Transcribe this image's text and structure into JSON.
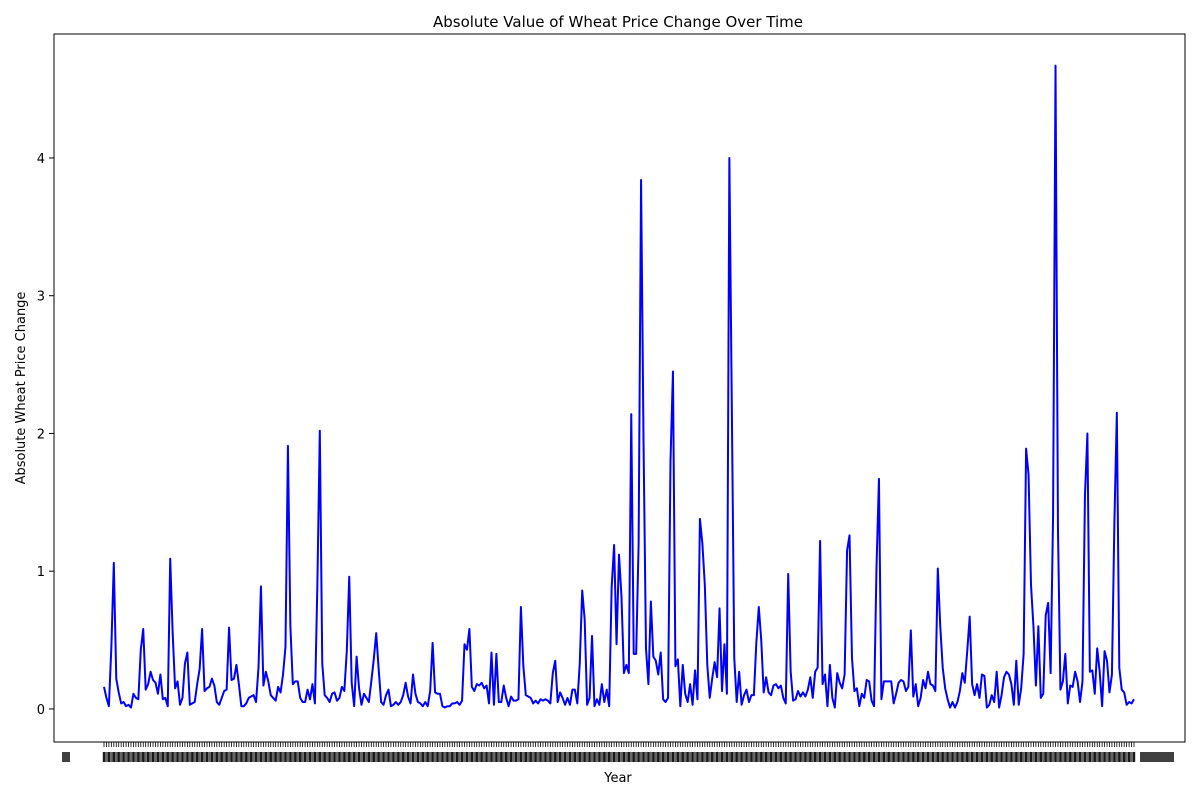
{
  "chart_data": {
    "type": "line",
    "title": "Absolute Value of Wheat Price Change Over Time",
    "xlabel": "Year",
    "ylabel": "Absolute Wheat Price Change",
    "x_tick_labels_note": "",
    "ylim": [
      -0.24,
      4.9
    ],
    "y_ticks": [
      0,
      1,
      2,
      3,
      4
    ],
    "grid": false,
    "series": [
      {
        "name": "",
        "color": "#0000ff",
        "values": [
          0.16,
          0.08,
          0.02,
          0.45,
          1.06,
          0.22,
          0.12,
          0.04,
          0.05,
          0.02,
          0.03,
          0.01,
          0.11,
          0.08,
          0.07,
          0.43,
          0.58,
          0.14,
          0.18,
          0.27,
          0.21,
          0.19,
          0.11,
          0.25,
          0.07,
          0.08,
          0.02,
          1.09,
          0.55,
          0.15,
          0.2,
          0.03,
          0.08,
          0.33,
          0.41,
          0.03,
          0.04,
          0.05,
          0.18,
          0.29,
          0.58,
          0.13,
          0.15,
          0.16,
          0.22,
          0.17,
          0.05,
          0.03,
          0.08,
          0.13,
          0.14,
          0.59,
          0.21,
          0.22,
          0.32,
          0.18,
          0.02,
          0.02,
          0.04,
          0.08,
          0.09,
          0.1,
          0.05,
          0.3,
          0.89,
          0.17,
          0.27,
          0.2,
          0.1,
          0.08,
          0.06,
          0.16,
          0.12,
          0.25,
          0.45,
          1.91,
          0.6,
          0.18,
          0.2,
          0.2,
          0.08,
          0.05,
          0.05,
          0.14,
          0.07,
          0.18,
          0.04,
          0.9,
          2.02,
          0.33,
          0.1,
          0.08,
          0.05,
          0.11,
          0.12,
          0.06,
          0.08,
          0.16,
          0.13,
          0.42,
          0.96,
          0.19,
          0.02,
          0.38,
          0.15,
          0.03,
          0.11,
          0.08,
          0.05,
          0.2,
          0.36,
          0.55,
          0.29,
          0.05,
          0.03,
          0.1,
          0.14,
          0.02,
          0.03,
          0.05,
          0.03,
          0.05,
          0.1,
          0.19,
          0.09,
          0.04,
          0.25,
          0.11,
          0.05,
          0.04,
          0.02,
          0.05,
          0.02,
          0.13,
          0.48,
          0.12,
          0.11,
          0.11,
          0.02,
          0.01,
          0.02,
          0.02,
          0.04,
          0.04,
          0.05,
          0.03,
          0.06,
          0.47,
          0.43,
          0.58,
          0.16,
          0.13,
          0.18,
          0.17,
          0.19,
          0.15,
          0.17,
          0.04,
          0.41,
          0.03,
          0.4,
          0.05,
          0.05,
          0.17,
          0.08,
          0.02,
          0.09,
          0.06,
          0.06,
          0.07,
          0.74,
          0.31,
          0.1,
          0.09,
          0.08,
          0.04,
          0.06,
          0.04,
          0.07,
          0.06,
          0.07,
          0.06,
          0.04,
          0.26,
          0.35,
          0.05,
          0.12,
          0.08,
          0.03,
          0.08,
          0.03,
          0.14,
          0.14,
          0.04,
          0.33,
          0.86,
          0.65,
          0.03,
          0.08,
          0.53,
          0.02,
          0.07,
          0.03,
          0.18,
          0.05,
          0.14,
          0.02,
          0.88,
          1.19,
          0.47,
          1.12,
          0.82,
          0.26,
          0.32,
          0.26,
          2.14,
          0.4,
          0.4,
          1.2,
          3.84,
          1.95,
          0.44,
          0.18,
          0.78,
          0.38,
          0.35,
          0.25,
          0.41,
          0.07,
          0.05,
          0.08,
          1.8,
          2.45,
          0.31,
          0.36,
          0.02,
          0.32,
          0.11,
          0.05,
          0.18,
          0.03,
          0.28,
          0.07,
          1.38,
          1.2,
          0.9,
          0.32,
          0.08,
          0.22,
          0.34,
          0.23,
          0.73,
          0.13,
          0.47,
          0.11,
          4.0,
          2.2,
          0.37,
          0.05,
          0.27,
          0.03,
          0.1,
          0.14,
          0.05,
          0.1,
          0.1,
          0.48,
          0.74,
          0.5,
          0.12,
          0.23,
          0.12,
          0.1,
          0.17,
          0.18,
          0.15,
          0.17,
          0.08,
          0.04,
          0.98,
          0.27,
          0.06,
          0.07,
          0.13,
          0.09,
          0.12,
          0.09,
          0.14,
          0.23,
          0.08,
          0.27,
          0.3,
          1.22,
          0.18,
          0.25,
          0.02,
          0.32,
          0.08,
          0.01,
          0.26,
          0.19,
          0.15,
          0.25,
          1.15,
          1.26,
          0.37,
          0.13,
          0.15,
          0.02,
          0.11,
          0.08,
          0.21,
          0.2,
          0.06,
          0.02,
          1.03,
          1.67,
          0.07,
          0.2,
          0.2,
          0.2,
          0.2,
          0.04,
          0.11,
          0.19,
          0.21,
          0.2,
          0.13,
          0.16,
          0.57,
          0.09,
          0.18,
          0.02,
          0.08,
          0.21,
          0.15,
          0.27,
          0.18,
          0.17,
          0.13,
          1.02,
          0.6,
          0.3,
          0.15,
          0.07,
          0.01,
          0.05,
          0.01,
          0.05,
          0.13,
          0.26,
          0.19,
          0.42,
          0.67,
          0.18,
          0.1,
          0.18,
          0.08,
          0.25,
          0.24,
          0.01,
          0.03,
          0.1,
          0.05,
          0.27,
          0.01,
          0.1,
          0.23,
          0.27,
          0.25,
          0.18,
          0.03,
          0.35,
          0.03,
          0.15,
          0.4,
          1.89,
          1.7,
          0.9,
          0.6,
          0.17,
          0.6,
          0.08,
          0.11,
          0.68,
          0.77,
          0.26,
          1.4,
          4.67,
          1.3,
          0.14,
          0.2,
          0.4,
          0.04,
          0.17,
          0.16,
          0.27,
          0.2,
          0.05,
          0.2,
          1.55,
          2.0,
          0.27,
          0.28,
          0.11,
          0.44,
          0.27,
          0.02,
          0.42,
          0.35,
          0.12,
          0.25,
          1.35,
          2.15,
          0.3,
          0.14,
          0.12,
          0.03,
          0.05,
          0.04,
          0.07
        ]
      }
    ]
  }
}
